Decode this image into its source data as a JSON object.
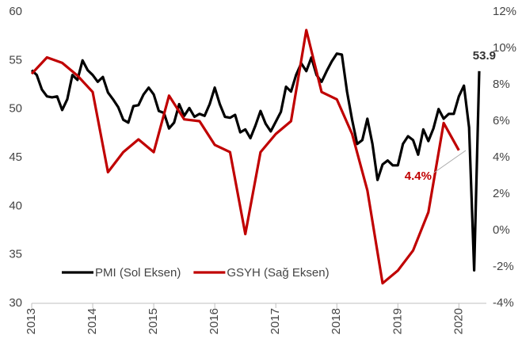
{
  "chart_data": {
    "type": "line",
    "ylim": [
      30,
      60
    ],
    "yticks": [
      30,
      35,
      40,
      45,
      50,
      55,
      60
    ],
    "y2lim": [
      -4,
      12
    ],
    "y2ticks": [
      {
        "value": -4,
        "label": "-4%"
      },
      {
        "value": -2,
        "label": "-2%"
      },
      {
        "value": 0,
        "label": "0%"
      },
      {
        "value": 2,
        "label": "2%"
      },
      {
        "value": 4,
        "label": "4%"
      },
      {
        "value": 6,
        "label": "6%"
      },
      {
        "value": 8,
        "label": "8%"
      },
      {
        "value": 10,
        "label": "10%"
      },
      {
        "value": 12,
        "label": "12%"
      }
    ],
    "xlim": [
      2013,
      2020.45
    ],
    "xticks": [
      2013,
      2014,
      2015,
      2016,
      2017,
      2018,
      2019,
      2020
    ],
    "legend": "lower left",
    "series": [
      {
        "name": "PMI (Sol Eksen)",
        "color": "#000000",
        "x": [
          2013,
          2013.083,
          2013.167,
          2013.25,
          2013.333,
          2013.417,
          2013.5,
          2013.583,
          2013.667,
          2013.75,
          2013.833,
          2013.917,
          2014,
          2014.083,
          2014.167,
          2014.25,
          2014.333,
          2014.417,
          2014.5,
          2014.583,
          2014.667,
          2014.75,
          2014.833,
          2014.917,
          2015,
          2015.083,
          2015.167,
          2015.25,
          2015.333,
          2015.417,
          2015.5,
          2015.583,
          2015.667,
          2015.75,
          2015.833,
          2015.917,
          2016,
          2016.083,
          2016.167,
          2016.25,
          2016.333,
          2016.417,
          2016.5,
          2016.583,
          2016.667,
          2016.75,
          2016.833,
          2016.917,
          2017,
          2017.083,
          2017.167,
          2017.25,
          2017.333,
          2017.417,
          2017.5,
          2017.583,
          2017.667,
          2017.75,
          2017.833,
          2017.917,
          2018,
          2018.083,
          2018.167,
          2018.25,
          2018.333,
          2018.417,
          2018.5,
          2018.583,
          2018.667,
          2018.75,
          2018.833,
          2018.917,
          2019,
          2019.083,
          2019.167,
          2019.25,
          2019.333,
          2019.417,
          2019.5,
          2019.583,
          2019.667,
          2019.75,
          2019.833,
          2019.917,
          2020,
          2020.083,
          2020.167,
          2020.25,
          2020.333
        ],
        "values": [
          54.0,
          53.5,
          52.0,
          51.3,
          51.2,
          51.3,
          49.9,
          51.0,
          53.5,
          53.0,
          55.0,
          54.0,
          53.5,
          52.8,
          53.3,
          51.7,
          51.0,
          50.2,
          48.9,
          48.6,
          50.3,
          50.4,
          51.5,
          52.2,
          51.5,
          49.8,
          49.6,
          48.0,
          48.6,
          50.5,
          49.3,
          50.1,
          49.2,
          49.5,
          49.3,
          50.5,
          52.2,
          50.5,
          49.2,
          49.1,
          49.4,
          47.6,
          47.9,
          47.0,
          48.3,
          49.8,
          48.5,
          47.7,
          48.7,
          49.7,
          52.3,
          51.8,
          53.5,
          54.7,
          53.9,
          55.3,
          53.5,
          52.8,
          53.9,
          54.9,
          55.7,
          55.6,
          51.8,
          48.9,
          46.4,
          46.8,
          49.0,
          46.4,
          42.7,
          44.3,
          44.7,
          44.2,
          44.2,
          46.4,
          47.2,
          46.8,
          45.3,
          47.9,
          46.7,
          48.0,
          50.0,
          49.0,
          49.5,
          49.5,
          51.3,
          52.4,
          48.1,
          33.4,
          53.9
        ]
      },
      {
        "name": "GSYH (Sağ Eksen)",
        "color": "#c00000",
        "axis": "y2",
        "x": [
          2013,
          2013.25,
          2013.5,
          2013.75,
          2014,
          2014.25,
          2014.5,
          2014.75,
          2015,
          2015.25,
          2015.5,
          2015.75,
          2016,
          2016.25,
          2016.5,
          2016.75,
          2017,
          2017.25,
          2017.5,
          2017.75,
          2018,
          2018.25,
          2018.5,
          2018.75,
          2019,
          2019.25,
          2019.5,
          2019.75,
          2020
        ],
        "values": [
          8.6,
          9.5,
          9.2,
          8.5,
          7.6,
          3.2,
          4.3,
          5.0,
          4.3,
          7.4,
          6.1,
          6.0,
          4.7,
          4.3,
          -0.2,
          4.3,
          5.3,
          6.0,
          11.0,
          7.6,
          7.2,
          5.3,
          2.2,
          -2.9,
          -2.2,
          -1.1,
          1.0,
          5.9,
          4.4
        ]
      }
    ],
    "annotations": [
      {
        "text": "53.9"
      },
      {
        "text": "4.4%"
      }
    ]
  }
}
